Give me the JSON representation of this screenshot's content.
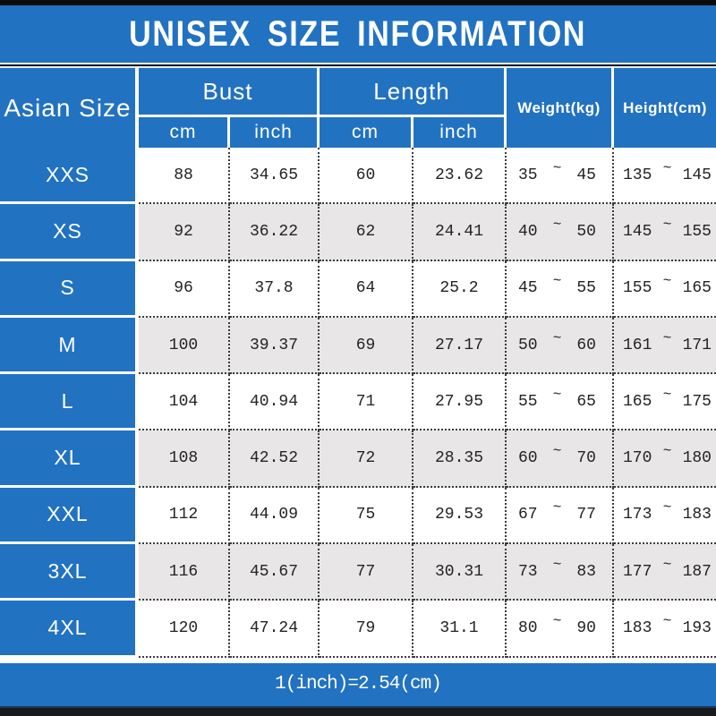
{
  "page": {
    "title": "UNISEX SIZE INFORMATION",
    "footer_note": "1(inch)=2.54(cm)"
  },
  "table": {
    "size_column_header": "Asian Size",
    "groups": [
      {
        "label": "Bust",
        "units": [
          "cm",
          "inch"
        ]
      },
      {
        "label": "Length",
        "units": [
          "cm",
          "inch"
        ]
      }
    ],
    "weight_header": "Weight(kg)",
    "height_header": "Height(cm)",
    "tilde": "~",
    "rows": [
      {
        "size": "XXS",
        "bust_cm": "88",
        "bust_inch": "34.65",
        "length_cm": "60",
        "length_inch": "23.62",
        "weight_min": "35",
        "weight_max": "45",
        "height_min": "135",
        "height_max": "145"
      },
      {
        "size": "XS",
        "bust_cm": "92",
        "bust_inch": "36.22",
        "length_cm": "62",
        "length_inch": "24.41",
        "weight_min": "40",
        "weight_max": "50",
        "height_min": "145",
        "height_max": "155"
      },
      {
        "size": "S",
        "bust_cm": "96",
        "bust_inch": "37.8",
        "length_cm": "64",
        "length_inch": "25.2",
        "weight_min": "45",
        "weight_max": "55",
        "height_min": "155",
        "height_max": "165"
      },
      {
        "size": "M",
        "bust_cm": "100",
        "bust_inch": "39.37",
        "length_cm": "69",
        "length_inch": "27.17",
        "weight_min": "50",
        "weight_max": "60",
        "height_min": "161",
        "height_max": "171"
      },
      {
        "size": "L",
        "bust_cm": "104",
        "bust_inch": "40.94",
        "length_cm": "71",
        "length_inch": "27.95",
        "weight_min": "55",
        "weight_max": "65",
        "height_min": "165",
        "height_max": "175"
      },
      {
        "size": "XL",
        "bust_cm": "108",
        "bust_inch": "42.52",
        "length_cm": "72",
        "length_inch": "28.35",
        "weight_min": "60",
        "weight_max": "70",
        "height_min": "170",
        "height_max": "180"
      },
      {
        "size": "XXL",
        "bust_cm": "112",
        "bust_inch": "44.09",
        "length_cm": "75",
        "length_inch": "29.53",
        "weight_min": "67",
        "weight_max": "77",
        "height_min": "173",
        "height_max": "183"
      },
      {
        "size": "3XL",
        "bust_cm": "116",
        "bust_inch": "45.67",
        "length_cm": "77",
        "length_inch": "30.31",
        "weight_min": "73",
        "weight_max": "83",
        "height_min": "177",
        "height_max": "187"
      },
      {
        "size": "4XL",
        "bust_cm": "120",
        "bust_inch": "47.24",
        "length_cm": "79",
        "length_inch": "31.1",
        "weight_min": "80",
        "weight_max": "90",
        "height_min": "183",
        "height_max": "193"
      }
    ]
  },
  "colors": {
    "brand_blue": "#2272c2",
    "row_alt_gray": "#e8e6e6",
    "dotted_line": "#3b3b3b",
    "text_on_blue": "#ffffff",
    "data_text": "#232323",
    "top_bar": "#0c0c0c",
    "bottom_bar": "#1a1a1a"
  },
  "chart_data": {
    "type": "table",
    "title": "UNISEX SIZE INFORMATION",
    "columns": [
      "Asian Size",
      "Bust cm",
      "Bust inch",
      "Length cm",
      "Length inch",
      "Weight(kg)",
      "Height(cm)"
    ],
    "rows": [
      [
        "XXS",
        "88",
        "34.65",
        "60",
        "23.62",
        "35 ~ 45",
        "135 ~ 145"
      ],
      [
        "XS",
        "92",
        "36.22",
        "62",
        "24.41",
        "40 ~ 50",
        "145 ~ 155"
      ],
      [
        "S",
        "96",
        "37.8",
        "64",
        "25.2",
        "45 ~ 55",
        "155 ~ 165"
      ],
      [
        "M",
        "100",
        "39.37",
        "69",
        "27.17",
        "50 ~ 60",
        "161 ~ 171"
      ],
      [
        "L",
        "104",
        "40.94",
        "71",
        "27.95",
        "55 ~ 65",
        "165 ~ 175"
      ],
      [
        "XL",
        "108",
        "42.52",
        "72",
        "28.35",
        "60 ~ 70",
        "170 ~ 180"
      ],
      [
        "XXL",
        "112",
        "44.09",
        "75",
        "29.53",
        "67 ~ 77",
        "173 ~ 183"
      ],
      [
        "3XL",
        "116",
        "45.67",
        "77",
        "30.31",
        "73 ~ 83",
        "177 ~ 187"
      ],
      [
        "4XL",
        "120",
        "47.24",
        "79",
        "31.1",
        "80 ~ 90",
        "183 ~ 193"
      ]
    ],
    "note": "1(inch)=2.54(cm)"
  }
}
